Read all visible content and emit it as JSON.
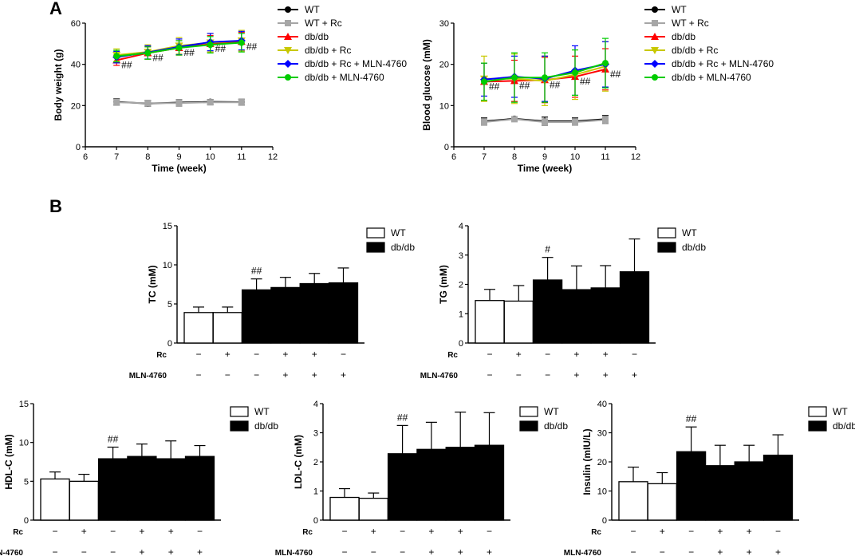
{
  "panel_labels": [
    "A",
    "B"
  ],
  "row_labels": {
    "rc": "Rc",
    "mln": "MLN-4760"
  },
  "row_signs": {
    "rc": [
      "−",
      "+",
      "−",
      "+",
      "+",
      "−"
    ],
    "mln": [
      "−",
      "−",
      "−",
      "+",
      "+",
      "+"
    ]
  },
  "chart_data": [
    {
      "id": "body-weight",
      "type": "line",
      "xlabel": "Time (week)",
      "ylabel": "Body weight (g)",
      "xlim": [
        6,
        12
      ],
      "ylim": [
        0,
        60
      ],
      "xticks": [
        6,
        7,
        8,
        9,
        10,
        11,
        12
      ],
      "yticks": [
        0,
        20,
        40,
        60
      ],
      "x": [
        7,
        8,
        9,
        10,
        11
      ],
      "series": [
        {
          "name": "WT",
          "color": "#000000",
          "marker": "circle",
          "values": [
            21.8,
            21.0,
            21.5,
            21.8,
            21.7
          ],
          "err": [
            1.5,
            1.3,
            1.4,
            1.2,
            1.4
          ]
        },
        {
          "name": "WT + Rc",
          "color": "#a6a6a6",
          "marker": "square",
          "values": [
            21.6,
            21.2,
            21.2,
            21.6,
            21.6
          ],
          "err": [
            1.5,
            1.4,
            1.6,
            1.3,
            1.5
          ]
        },
        {
          "name": "db/db",
          "color": "#ff0000",
          "marker": "triangle-up",
          "values": [
            42.0,
            45.5,
            48.0,
            50.0,
            51.0
          ],
          "err": [
            2.5,
            3.0,
            3.5,
            4.0,
            4.5
          ]
        },
        {
          "name": "db/db + Rc",
          "color": "#c8c800",
          "marker": "triangle-down",
          "values": [
            44.5,
            46.0,
            49.0,
            50.5,
            51.5
          ],
          "err": [
            3.0,
            3.5,
            4.0,
            4.5,
            5.0
          ]
        },
        {
          "name": "db/db + Rc + MLN-4760",
          "color": "#0000ff",
          "marker": "diamond",
          "values": [
            43.5,
            45.8,
            48.5,
            50.8,
            51.5
          ],
          "err": [
            2.8,
            3.2,
            3.8,
            4.2,
            4.5
          ]
        },
        {
          "name": "db/db + MLN-4760",
          "color": "#00cc00",
          "marker": "circle",
          "values": [
            44.0,
            45.5,
            48.0,
            49.5,
            50.5
          ],
          "err": [
            2.8,
            3.0,
            3.5,
            4.0,
            4.5
          ]
        }
      ],
      "annotations": [
        "##",
        "##",
        "##",
        "##",
        "##"
      ]
    },
    {
      "id": "blood-glucose",
      "type": "line",
      "xlabel": "Time (week)",
      "ylabel": "Blood glucose (mM)",
      "xlim": [
        6,
        12
      ],
      "ylim": [
        0,
        30
      ],
      "xticks": [
        6,
        7,
        8,
        9,
        10,
        11,
        12
      ],
      "yticks": [
        0,
        10,
        20,
        30
      ],
      "x": [
        7,
        8,
        9,
        10,
        11
      ],
      "series": [
        {
          "name": "WT",
          "color": "#000000",
          "marker": "circle",
          "values": [
            6.2,
            6.8,
            6.2,
            6.2,
            6.7
          ],
          "err": [
            0.8,
            0.4,
            1.0,
            0.8,
            0.9
          ]
        },
        {
          "name": "WT + Rc",
          "color": "#a6a6a6",
          "marker": "square",
          "values": [
            6.0,
            6.7,
            6.0,
            6.0,
            6.5
          ],
          "err": [
            0.8,
            0.5,
            0.8,
            0.8,
            0.9
          ]
        },
        {
          "name": "db/db",
          "color": "#ff0000",
          "marker": "triangle-up",
          "values": [
            15.8,
            16.0,
            16.2,
            17.0,
            18.8
          ],
          "err": [
            4.5,
            5.0,
            5.5,
            5.0,
            5.0
          ]
        },
        {
          "name": "db/db + Rc",
          "color": "#c8c800",
          "marker": "triangle-down",
          "values": [
            16.5,
            16.5,
            16.0,
            17.5,
            19.5
          ],
          "err": [
            5.5,
            6.0,
            6.0,
            6.0,
            6.0
          ]
        },
        {
          "name": "db/db + Rc + MLN-4760",
          "color": "#0000ff",
          "marker": "diamond",
          "values": [
            16.3,
            17.0,
            16.5,
            18.5,
            20.0
          ],
          "err": [
            4.0,
            5.0,
            5.5,
            6.0,
            5.5
          ]
        },
        {
          "name": "db/db + MLN-4760",
          "color": "#00cc00",
          "marker": "circle",
          "values": [
            15.8,
            16.8,
            16.8,
            18.0,
            20.3
          ],
          "err": [
            4.5,
            6.0,
            6.0,
            5.5,
            6.0
          ]
        }
      ],
      "annotations": [
        "##",
        "##",
        "##",
        "##",
        "##"
      ]
    },
    {
      "id": "tc",
      "type": "bar",
      "ylabel": "TC (mM)",
      "ylim": [
        0,
        15
      ],
      "yticks": [
        0,
        5,
        10,
        15
      ],
      "values": [
        3.9,
        3.9,
        6.8,
        7.1,
        7.6,
        7.7
      ],
      "err": [
        0.7,
        0.7,
        1.4,
        1.3,
        1.3,
        1.9
      ],
      "fills": [
        "white",
        "white",
        "black",
        "black",
        "black",
        "black"
      ],
      "annotation": {
        "bar": 2,
        "text": "##"
      },
      "legend": [
        "WT",
        "db/db"
      ]
    },
    {
      "id": "tg",
      "type": "bar",
      "ylabel": "TG (mM)",
      "ylim": [
        0,
        4
      ],
      "yticks": [
        0,
        1,
        2,
        3,
        4
      ],
      "values": [
        1.45,
        1.43,
        2.15,
        1.82,
        1.88,
        2.43
      ],
      "err": [
        0.38,
        0.53,
        0.77,
        0.81,
        0.76,
        1.12
      ],
      "fills": [
        "white",
        "white",
        "black",
        "black",
        "black",
        "black"
      ],
      "annotation": {
        "bar": 2,
        "text": "#"
      },
      "legend": [
        "WT",
        "db/db"
      ]
    },
    {
      "id": "hdl",
      "type": "bar",
      "ylabel": "HDL-C (mM)",
      "ylim": [
        0,
        15
      ],
      "yticks": [
        0,
        5,
        10,
        15
      ],
      "values": [
        5.3,
        5.0,
        7.9,
        8.2,
        7.9,
        8.2
      ],
      "err": [
        0.9,
        0.9,
        1.5,
        1.6,
        2.3,
        1.4
      ],
      "fills": [
        "white",
        "white",
        "black",
        "black",
        "black",
        "black"
      ],
      "annotation": {
        "bar": 2,
        "text": "##"
      },
      "legend": [
        "WT",
        "db/db"
      ]
    },
    {
      "id": "ldl",
      "type": "bar",
      "ylabel": "LDL-C (mM)",
      "ylim": [
        0,
        4
      ],
      "yticks": [
        0,
        1,
        2,
        3,
        4
      ],
      "values": [
        0.78,
        0.75,
        2.28,
        2.43,
        2.5,
        2.57
      ],
      "err": [
        0.3,
        0.18,
        0.97,
        0.93,
        1.21,
        1.12
      ],
      "fills": [
        "white",
        "white",
        "black",
        "black",
        "black",
        "black"
      ],
      "annotation": {
        "bar": 2,
        "text": "##"
      },
      "legend": [
        "WT",
        "db/db"
      ]
    },
    {
      "id": "insulin",
      "type": "bar",
      "ylabel": "Insulin (mIU/L)",
      "ylim": [
        0,
        40
      ],
      "yticks": [
        0,
        10,
        20,
        30,
        40
      ],
      "values": [
        13.2,
        12.5,
        23.5,
        18.7,
        20.0,
        22.3
      ],
      "err": [
        5.0,
        3.8,
        8.5,
        7.0,
        5.7,
        7.0
      ],
      "fills": [
        "white",
        "white",
        "black",
        "black",
        "black",
        "black"
      ],
      "annotation": {
        "bar": 2,
        "text": "##"
      },
      "legend": [
        "WT",
        "db/db"
      ]
    }
  ]
}
